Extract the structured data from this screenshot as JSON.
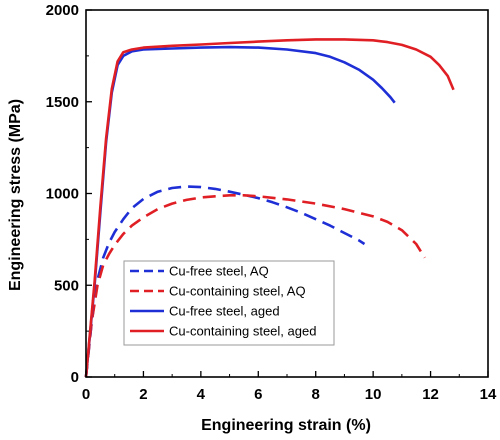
{
  "chart_data": {
    "type": "line",
    "title": "",
    "xlabel": "Engineering strain (%)",
    "ylabel": "Engineering stress (MPa)",
    "xlim": [
      0,
      14
    ],
    "ylim": [
      0,
      2000
    ],
    "xticks": [
      "0",
      "2",
      "4",
      "6",
      "8",
      "10",
      "12",
      "14"
    ],
    "yticks": [
      "0",
      "500",
      "1000",
      "1500",
      "2000"
    ],
    "grid": false,
    "legend_position": "lower-left",
    "series": [
      {
        "name": "Cu-free steel, AQ",
        "color": "#1f2fd6",
        "dash": "dashed",
        "x": [
          0,
          0.2,
          0.4,
          0.6,
          0.8,
          1.0,
          1.3,
          1.6,
          2.0,
          2.5,
          3.0,
          3.5,
          4.0,
          4.5,
          5.0,
          5.5,
          6.0,
          6.5,
          7.0,
          7.5,
          8.0,
          8.5,
          9.0,
          9.5,
          9.7
        ],
        "y": [
          0,
          300,
          530,
          650,
          730,
          790,
          860,
          920,
          970,
          1010,
          1030,
          1038,
          1035,
          1025,
          1010,
          993,
          975,
          952,
          925,
          895,
          860,
          825,
          785,
          745,
          725
        ]
      },
      {
        "name": "Cu-containing steel, AQ",
        "color": "#e01f25",
        "dash": "dashed",
        "x": [
          0,
          0.2,
          0.4,
          0.6,
          0.8,
          1.0,
          1.3,
          1.6,
          2.0,
          2.5,
          3.0,
          3.5,
          4.0,
          4.5,
          5.0,
          5.5,
          6.0,
          7.0,
          8.0,
          9.0,
          10.0,
          10.5,
          11.0,
          11.5,
          11.8
        ],
        "y": [
          0,
          300,
          500,
          610,
          670,
          720,
          780,
          825,
          870,
          915,
          945,
          965,
          978,
          985,
          990,
          990,
          985,
          968,
          945,
          915,
          875,
          845,
          800,
          725,
          650
        ]
      },
      {
        "name": "Cu-free steel, aged",
        "color": "#1f2fd6",
        "dash": "solid",
        "x": [
          0,
          0.3,
          0.5,
          0.7,
          0.9,
          1.1,
          1.3,
          1.6,
          2.0,
          3.0,
          4.0,
          5.0,
          6.0,
          7.0,
          8.0,
          8.5,
          9.0,
          9.5,
          10.0,
          10.3,
          10.6,
          10.75
        ],
        "y": [
          0,
          500,
          900,
          1280,
          1550,
          1700,
          1750,
          1775,
          1785,
          1790,
          1795,
          1798,
          1795,
          1785,
          1765,
          1745,
          1715,
          1675,
          1620,
          1575,
          1525,
          1495
        ]
      },
      {
        "name": "Cu-containing steel, aged",
        "color": "#e01f25",
        "dash": "solid",
        "x": [
          0,
          0.3,
          0.5,
          0.7,
          0.9,
          1.1,
          1.3,
          1.6,
          2.0,
          3.0,
          4.0,
          5.0,
          6.0,
          7.0,
          8.0,
          9.0,
          10.0,
          10.5,
          11.0,
          11.5,
          12.0,
          12.3,
          12.6,
          12.8
        ],
        "y": [
          0,
          520,
          930,
          1300,
          1570,
          1720,
          1770,
          1785,
          1795,
          1805,
          1812,
          1820,
          1828,
          1835,
          1840,
          1840,
          1835,
          1825,
          1810,
          1785,
          1745,
          1700,
          1640,
          1565
        ]
      }
    ]
  }
}
